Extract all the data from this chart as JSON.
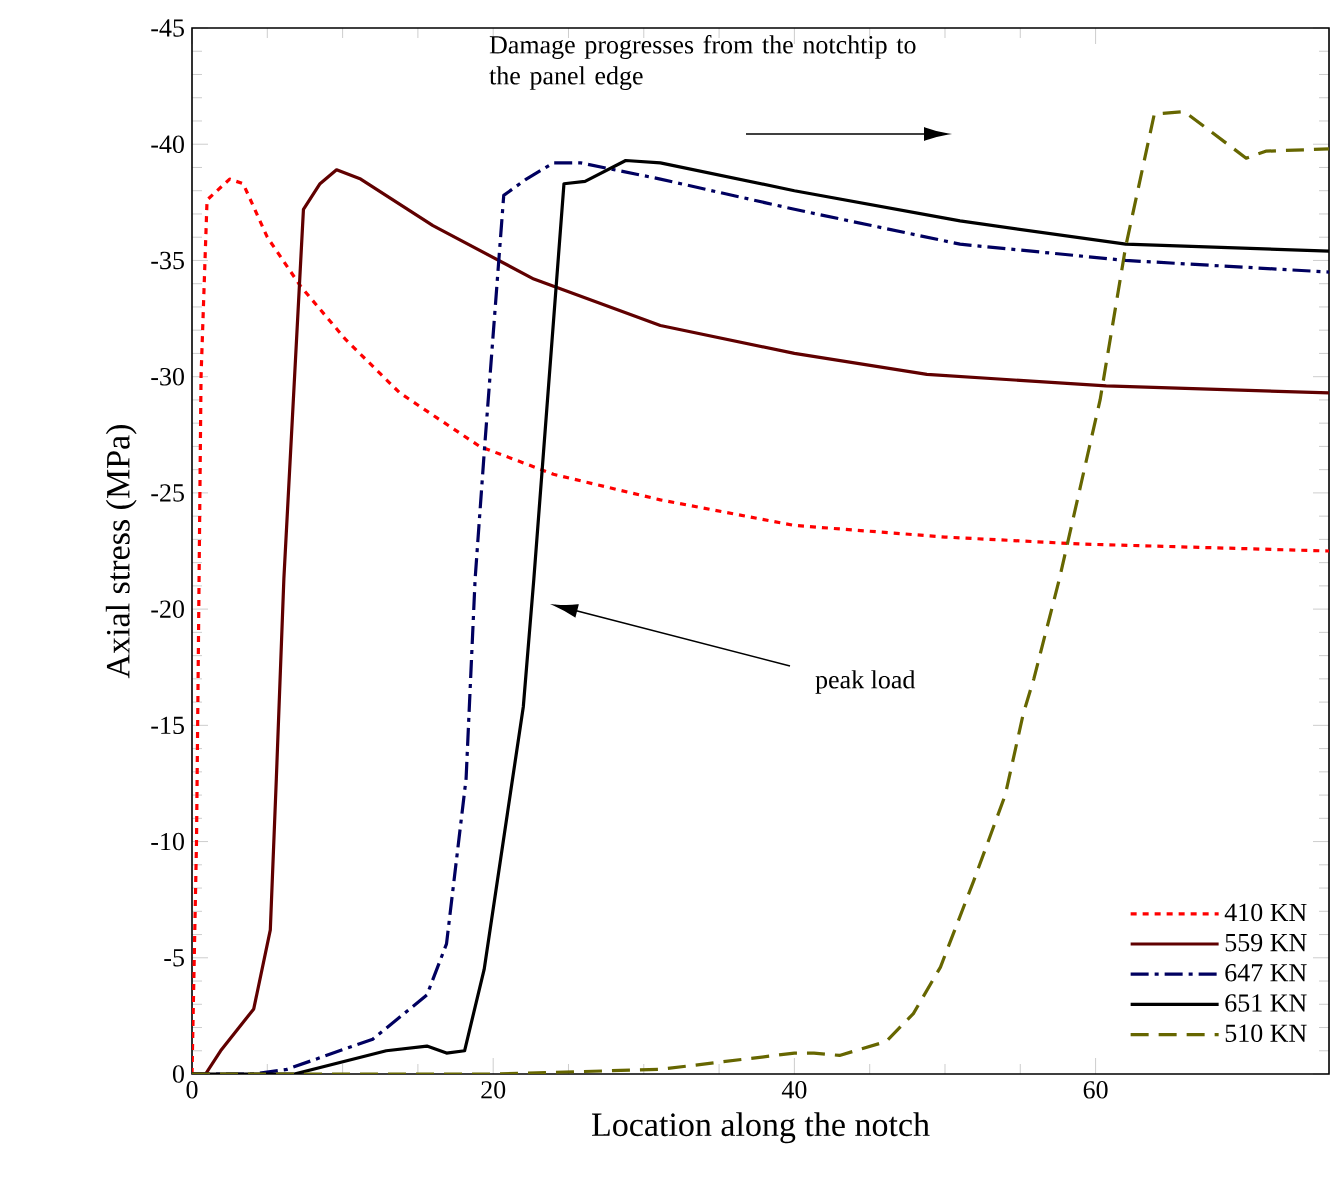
{
  "chart_data": {
    "type": "line",
    "xlabel": "Location along the notch",
    "ylabel": "Axial stress (MPa)",
    "xlim": [
      0,
      75.5
    ],
    "xticks": [
      0,
      20,
      40,
      60
    ],
    "ylim": [
      0,
      -45
    ],
    "yticks": [
      -45,
      -40,
      -35,
      -30,
      -25,
      -20,
      -15,
      -10,
      -5,
      0
    ],
    "legend": "bottom right",
    "annotations": [
      "Damage progresses from the notchtip to the panel edge",
      "peak load"
    ],
    "series": [
      {
        "name": "410 KN",
        "color": "#ff0000",
        "line_style": "dotted",
        "x": [
          0,
          0.3,
          0.6,
          1,
          2.5,
          3.4,
          5,
          7.2,
          10.2,
          13.8,
          19.1,
          24,
          31.1,
          40,
          50,
          59,
          75.5
        ],
        "values": [
          0,
          -10,
          -30,
          -37.6,
          -38.5,
          -38.3,
          -36,
          -33.9,
          -31.6,
          -29.3,
          -27,
          -25.8,
          -24.7,
          -23.6,
          -23.1,
          -22.8,
          -22.5
        ]
      },
      {
        "name": "559 KN",
        "color": "#600000",
        "line_style": "solid",
        "x": [
          0,
          0.9,
          1.9,
          4.1,
          5.2,
          5.6,
          6.1,
          7.4,
          8.5,
          9.6,
          11.2,
          16,
          22.7,
          31.1,
          40,
          48.8,
          60.7,
          75.5
        ],
        "values": [
          0,
          0,
          -1,
          -2.8,
          -6.2,
          -12.7,
          -21.3,
          -37.2,
          -38.3,
          -38.9,
          -38.5,
          -36.5,
          -34.2,
          -32.2,
          -31,
          -30.1,
          -29.6,
          -29.3
        ]
      },
      {
        "name": "647 KN",
        "color": "#000060",
        "line_style": "dashdot",
        "x": [
          0,
          4,
          6.3,
          12,
          15.6,
          16.9,
          18.2,
          18.8,
          19.4,
          20.7,
          22.2,
          24,
          25.8,
          31.1,
          40,
          51,
          62,
          75.5
        ],
        "values": [
          0,
          0,
          -0.2,
          -1.5,
          -3.4,
          -5.6,
          -12.7,
          -21.3,
          -26.7,
          -37.8,
          -38.5,
          -39.2,
          -39.2,
          -38.5,
          -37.2,
          -35.7,
          -35,
          -34.5
        ]
      },
      {
        "name": "651 KN",
        "color": "#000000",
        "line_style": "solid",
        "x": [
          0,
          6.8,
          12.9,
          15.6,
          16.9,
          18.1,
          19.4,
          22,
          22.7,
          24.7,
          26.1,
          28.8,
          31.1,
          40,
          51,
          62,
          75.5
        ],
        "values": [
          0,
          0,
          -1,
          -1.2,
          -0.9,
          -1,
          -4.5,
          -15.8,
          -21.3,
          -38.3,
          -38.4,
          -39.3,
          -39.2,
          -38,
          -36.7,
          -35.7,
          -35.4
        ]
      },
      {
        "name": "510 KN",
        "color": "#666600",
        "line_style": "dashed",
        "x": [
          0,
          20,
          31.1,
          40,
          41.3,
          43,
          46.1,
          47.9,
          49.7,
          51.9,
          54,
          55.2,
          55.9,
          57.6,
          60.3,
          62,
          63.9,
          65.9,
          70,
          71.3,
          75.5
        ],
        "values": [
          0,
          0,
          -0.2,
          -0.9,
          -0.9,
          -0.8,
          -1.4,
          -2.6,
          -4.6,
          -8.3,
          -12,
          -15.5,
          -17,
          -21.3,
          -29,
          -35.6,
          -41.3,
          -41.4,
          -39.4,
          -39.7,
          -39.8
        ]
      }
    ]
  }
}
